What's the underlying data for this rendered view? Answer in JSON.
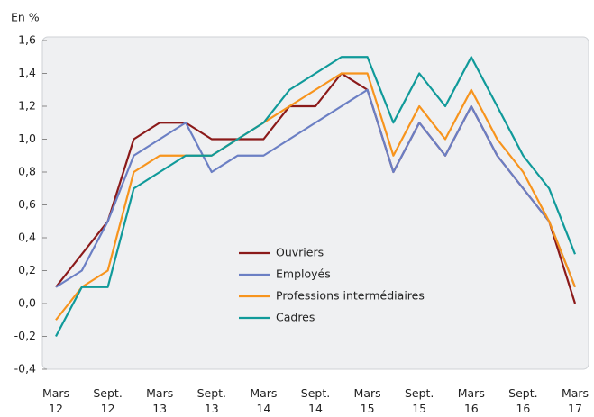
{
  "chart_data": {
    "type": "line",
    "y_unit": "En %",
    "categories": [
      "Mars\n12",
      null,
      "Sept.\n12",
      null,
      "Mars\n13",
      null,
      "Sept.\n13",
      null,
      "Mars\n14",
      null,
      "Sept.\n14",
      null,
      "Mars\n15",
      null,
      "Sept.\n15",
      null,
      "Mars\n16",
      null,
      "Sept.\n16",
      null,
      "Mars\n17"
    ],
    "series": [
      {
        "name": "Ouvriers",
        "color": "#8b1a1a",
        "values": [
          0.1,
          0.3,
          0.5,
          1.0,
          1.1,
          1.1,
          1.0,
          1.0,
          1.0,
          1.2,
          1.2,
          1.4,
          1.3,
          0.8,
          1.1,
          0.9,
          1.2,
          0.9,
          0.7,
          0.5,
          0.0
        ]
      },
      {
        "name": "Employés",
        "color": "#6b7fc4",
        "values": [
          0.1,
          0.2,
          0.5,
          0.9,
          1.0,
          1.1,
          0.8,
          0.9,
          0.9,
          1.0,
          1.1,
          1.2,
          1.3,
          0.8,
          1.1,
          0.9,
          1.2,
          0.9,
          0.7,
          0.5,
          0.1
        ]
      },
      {
        "name": "Professions intermédiaires",
        "color": "#f7941d",
        "values": [
          -0.1,
          0.1,
          0.2,
          0.8,
          0.9,
          0.9,
          0.9,
          1.0,
          1.1,
          1.2,
          1.3,
          1.4,
          1.4,
          0.9,
          1.2,
          1.0,
          1.3,
          1.0,
          0.8,
          0.5,
          0.1
        ]
      },
      {
        "name": "Cadres",
        "color": "#109a9a",
        "values": [
          -0.2,
          0.1,
          0.1,
          0.7,
          0.8,
          0.9,
          0.9,
          1.0,
          1.1,
          1.3,
          1.4,
          1.5,
          1.5,
          1.1,
          1.4,
          1.2,
          1.5,
          1.2,
          0.9,
          0.7,
          0.3
        ]
      }
    ],
    "ylim": [
      -0.4,
      1.6
    ],
    "yticks": [
      {
        "value": -0.4,
        "label": "-0,4"
      },
      {
        "value": -0.2,
        "label": "-0,2"
      },
      {
        "value": 0,
        "label": "0,0"
      },
      {
        "value": 0.2,
        "label": "0,2"
      },
      {
        "value": 0.4,
        "label": "0,4"
      },
      {
        "value": 0.6,
        "label": "0,6"
      },
      {
        "value": 0.8,
        "label": "0,8"
      },
      {
        "value": 1.0,
        "label": "1,0"
      },
      {
        "value": 1.2,
        "label": "1,2"
      },
      {
        "value": 1.4,
        "label": "1,4"
      },
      {
        "value": 1.6,
        "label": "1,6"
      }
    ],
    "grid": false
  }
}
